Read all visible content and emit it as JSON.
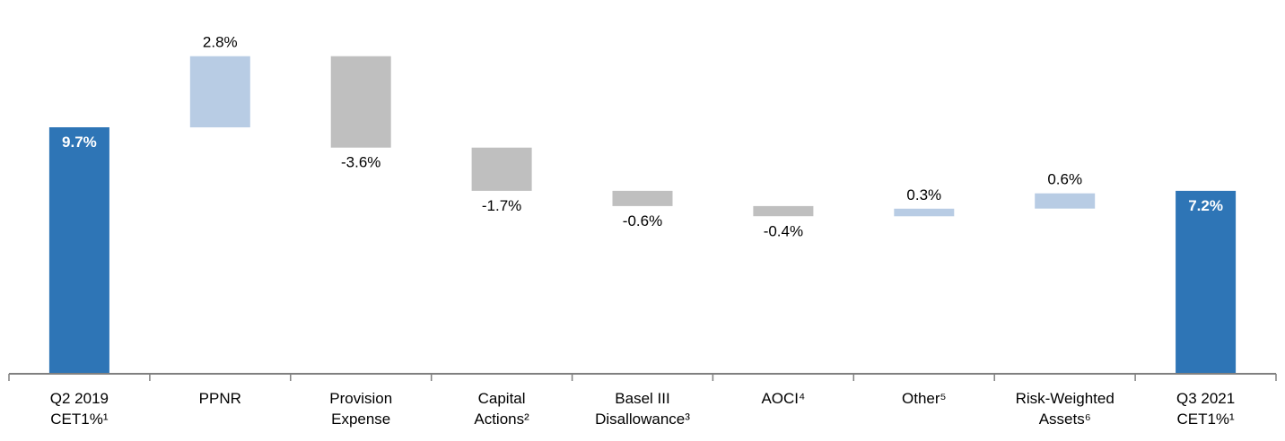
{
  "chart_data": {
    "type": "bar",
    "subtype": "waterfall",
    "categories": [
      [
        "Q2 2019",
        "CET1%¹"
      ],
      [
        "PPNR"
      ],
      [
        "Provision",
        "Expense"
      ],
      [
        "Capital",
        "Actions²"
      ],
      [
        "Basel III",
        "Disallowance³"
      ],
      [
        "AOCI⁴"
      ],
      [
        "Other⁵"
      ],
      [
        "Risk-Weighted",
        "Assets⁶"
      ],
      [
        "Q3 2021",
        "CET1%¹"
      ]
    ],
    "values": [
      9.7,
      2.8,
      -3.6,
      -1.7,
      -0.6,
      -0.4,
      0.3,
      0.6,
      7.2
    ],
    "kinds": [
      "total",
      "delta",
      "delta",
      "delta",
      "delta",
      "delta",
      "delta",
      "delta",
      "total"
    ],
    "data_labels": [
      "9.7%",
      "2.8%",
      "-3.6%",
      "-1.7%",
      "-0.6%",
      "-0.4%",
      "0.3%",
      "0.6%",
      "7.2%"
    ],
    "ylim": [
      0,
      13.3
    ],
    "title": "",
    "xlabel": "",
    "ylabel": "",
    "grid": false,
    "legend": "none",
    "colors": {
      "total": "#2e75b6",
      "increase": "#b8cce4",
      "decrease": "#bfbfbf",
      "axis": "#808080",
      "label_dark": "#000000",
      "label_light": "#ffffff"
    }
  }
}
